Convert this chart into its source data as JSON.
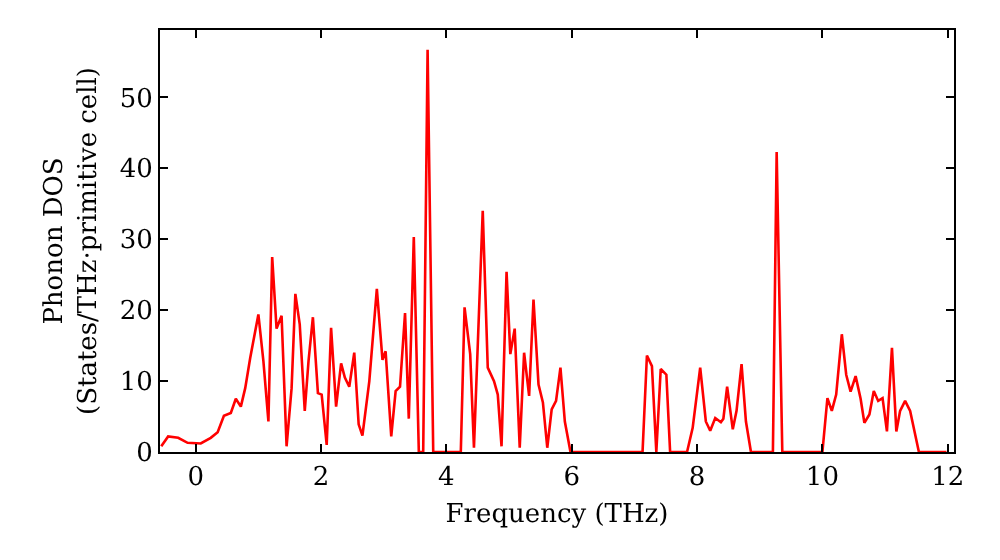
{
  "chart_data": {
    "type": "line",
    "xlabel": "Frequency (THz)",
    "ylabel": "Phonon DOS\n(States/THz·primitive cell)",
    "xlim": [
      -0.57,
      12.1
    ],
    "ylim": [
      0,
      59.5
    ],
    "xticks": [
      0,
      2,
      4,
      6,
      8,
      10,
      12
    ],
    "yticks": [
      0,
      10,
      20,
      30,
      40,
      50
    ],
    "grid": false,
    "marker": "none",
    "line_style": "solid",
    "series": [
      {
        "color": "#ff0000",
        "x": [
          -0.55,
          -0.44,
          -0.28,
          -0.13,
          0.08,
          0.24,
          0.35,
          0.45,
          0.56,
          0.64,
          0.72,
          0.79,
          0.87,
          1.0,
          1.08,
          1.16,
          1.22,
          1.29,
          1.37,
          1.45,
          1.53,
          1.59,
          1.66,
          1.74,
          1.8,
          1.87,
          1.95,
          2.01,
          2.09,
          2.16,
          2.24,
          2.32,
          2.38,
          2.45,
          2.53,
          2.6,
          2.66,
          2.77,
          2.89,
          2.98,
          3.03,
          3.12,
          3.19,
          3.26,
          3.34,
          3.4,
          3.48,
          3.56,
          3.63,
          3.7,
          3.79,
          4.23,
          4.29,
          4.38,
          4.44,
          4.58,
          4.66,
          4.76,
          4.82,
          4.88,
          4.96,
          5.02,
          5.09,
          5.17,
          5.24,
          5.32,
          5.39,
          5.47,
          5.54,
          5.61,
          5.68,
          5.75,
          5.82,
          5.89,
          5.98,
          7.13,
          7.2,
          7.28,
          7.35,
          7.42,
          7.51,
          7.57,
          7.84,
          7.93,
          8.05,
          8.14,
          8.21,
          8.29,
          8.38,
          8.42,
          8.48,
          8.57,
          8.63,
          8.71,
          8.78,
          8.86,
          9.21,
          9.27,
          9.36,
          10.0,
          10.08,
          10.15,
          10.22,
          10.31,
          10.38,
          10.45,
          10.53,
          10.61,
          10.67,
          10.75,
          10.82,
          10.89,
          10.96,
          11.03,
          11.11,
          11.18,
          11.24,
          11.32,
          11.4,
          11.54,
          11.98
        ],
        "values": [
          0.8,
          2.2,
          2,
          1.3,
          1.2,
          2,
          2.8,
          5.1,
          5.5,
          7.5,
          6.4,
          9,
          13.3,
          19.4,
          12.8,
          4.3,
          27.5,
          17.4,
          19.2,
          0.8,
          9,
          22.3,
          18,
          5.8,
          12.8,
          19,
          8.3,
          8.1,
          1,
          17.5,
          6.4,
          12.5,
          10.5,
          9.2,
          14,
          3.9,
          2.3,
          10,
          23,
          13,
          14.2,
          2.2,
          8.6,
          9.2,
          19.6,
          4.7,
          30.3,
          0,
          0,
          56.7,
          0,
          0,
          20.4,
          13.8,
          0.6,
          34,
          11.9,
          10,
          8.1,
          0.8,
          25.4,
          13.8,
          17.4,
          0.6,
          14,
          7.9,
          21.5,
          9.5,
          7,
          0.6,
          6,
          7.2,
          11.9,
          4.3,
          0,
          0,
          13.6,
          12.1,
          0,
          11.7,
          10.9,
          0,
          0,
          3.4,
          11.9,
          4.3,
          3,
          4.8,
          4.2,
          4.7,
          9.2,
          3.2,
          5.8,
          12.4,
          4.3,
          0,
          0,
          42.3,
          0,
          0,
          7.6,
          5.8,
          8.1,
          16.6,
          10.9,
          8.5,
          10.7,
          7.5,
          4.1,
          5.3,
          8.6,
          7.2,
          7.6,
          2.9,
          14.7,
          2.9,
          5.8,
          7.2,
          5.8,
          0,
          0
        ]
      }
    ]
  }
}
